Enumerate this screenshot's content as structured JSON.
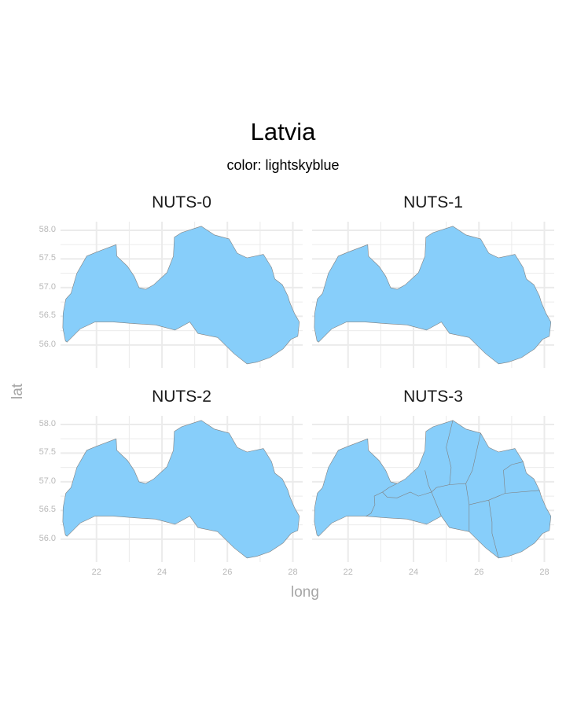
{
  "title": "Latvia",
  "subtitle": "color: lightskyblue",
  "colors": {
    "fill": "#87cefa",
    "border": "#808080",
    "grid": "#ebebeb",
    "tick_text": "#b8b8b8"
  },
  "chart_data": {
    "type": "map",
    "region": "Latvia",
    "facets": [
      {
        "label": "NUTS-0",
        "internal_borders": false
      },
      {
        "label": "NUTS-1",
        "internal_borders": false
      },
      {
        "label": "NUTS-2",
        "internal_borders": false
      },
      {
        "label": "NUTS-3",
        "internal_borders": true
      }
    ],
    "xlabel": "long",
    "ylabel": "lat",
    "x_ticks": [
      "22",
      "24",
      "26",
      "28"
    ],
    "y_ticks": [
      "58.0",
      "57.5",
      "57.0",
      "56.5",
      "56.0"
    ],
    "xlim": [
      20.9,
      28.3
    ],
    "ylim": [
      55.6,
      58.15
    ],
    "grid": true,
    "outline": [
      [
        21.05,
        56.07
      ],
      [
        20.97,
        56.3
      ],
      [
        20.98,
        56.55
      ],
      [
        21.06,
        56.8
      ],
      [
        21.22,
        56.9
      ],
      [
        21.4,
        57.25
      ],
      [
        21.7,
        57.55
      ],
      [
        22.0,
        57.62
      ],
      [
        22.6,
        57.75
      ],
      [
        22.62,
        57.55
      ],
      [
        22.95,
        57.37
      ],
      [
        23.15,
        57.2
      ],
      [
        23.3,
        57.0
      ],
      [
        23.5,
        56.97
      ],
      [
        23.75,
        57.05
      ],
      [
        24.15,
        57.26
      ],
      [
        24.35,
        57.55
      ],
      [
        24.38,
        57.88
      ],
      [
        24.6,
        57.96
      ],
      [
        25.2,
        58.07
      ],
      [
        25.6,
        57.92
      ],
      [
        26.05,
        57.85
      ],
      [
        26.3,
        57.6
      ],
      [
        26.6,
        57.52
      ],
      [
        27.1,
        57.58
      ],
      [
        27.35,
        57.35
      ],
      [
        27.45,
        57.15
      ],
      [
        27.68,
        57.05
      ],
      [
        27.85,
        56.85
      ],
      [
        27.9,
        56.75
      ],
      [
        28.05,
        56.55
      ],
      [
        28.2,
        56.4
      ],
      [
        28.15,
        56.15
      ],
      [
        27.95,
        56.1
      ],
      [
        27.7,
        55.93
      ],
      [
        27.3,
        55.78
      ],
      [
        26.9,
        55.7
      ],
      [
        26.6,
        55.67
      ],
      [
        26.2,
        55.85
      ],
      [
        25.7,
        56.13
      ],
      [
        25.1,
        56.2
      ],
      [
        24.85,
        56.4
      ],
      [
        24.4,
        56.26
      ],
      [
        23.8,
        56.35
      ],
      [
        23.2,
        56.37
      ],
      [
        22.5,
        56.4
      ],
      [
        21.95,
        56.4
      ],
      [
        21.5,
        56.28
      ],
      [
        21.1,
        56.05
      ]
    ],
    "nuts3_borders": [
      [
        [
          23.05,
          56.82
        ],
        [
          23.25,
          56.9
        ],
        [
          23.5,
          56.97
        ]
      ],
      [
        [
          23.05,
          56.82
        ],
        [
          22.8,
          56.75
        ],
        [
          22.82,
          56.6
        ],
        [
          22.7,
          56.45
        ],
        [
          22.55,
          56.4
        ]
      ],
      [
        [
          23.05,
          56.82
        ],
        [
          23.2,
          56.73
        ],
        [
          23.5,
          56.72
        ],
        [
          23.9,
          56.82
        ],
        [
          24.15,
          56.75
        ],
        [
          24.55,
          56.82
        ],
        [
          24.85,
          56.4
        ]
      ],
      [
        [
          24.35,
          57.2
        ],
        [
          24.45,
          56.95
        ],
        [
          24.55,
          56.82
        ]
      ],
      [
        [
          24.55,
          56.82
        ],
        [
          24.7,
          56.9
        ],
        [
          25.1,
          56.95
        ],
        [
          25.15,
          57.25
        ],
        [
          25.0,
          57.6
        ],
        [
          25.2,
          58.07
        ]
      ],
      [
        [
          25.1,
          56.95
        ],
        [
          25.6,
          56.97
        ],
        [
          25.8,
          57.2
        ],
        [
          26.05,
          57.85
        ]
      ],
      [
        [
          25.6,
          56.97
        ],
        [
          25.7,
          56.6
        ],
        [
          25.7,
          56.13
        ]
      ],
      [
        [
          25.7,
          56.6
        ],
        [
          26.3,
          56.68
        ],
        [
          26.8,
          56.8
        ],
        [
          27.85,
          56.85
        ]
      ],
      [
        [
          26.8,
          56.8
        ],
        [
          26.75,
          57.2
        ],
        [
          27.0,
          57.3
        ],
        [
          27.35,
          57.35
        ]
      ],
      [
        [
          26.3,
          56.68
        ],
        [
          26.4,
          56.3
        ],
        [
          26.4,
          56.1
        ],
        [
          26.6,
          55.67
        ]
      ]
    ]
  }
}
